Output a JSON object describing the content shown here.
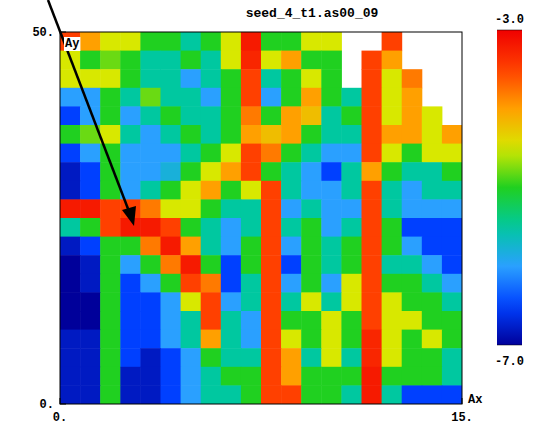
{
  "chart_data": {
    "type": "heatmap",
    "title": "seed_4_t1.as00_09",
    "x_label": "Ax",
    "y_label": "Ay",
    "x": [
      0.375,
      1.125,
      1.875,
      2.625,
      3.375,
      4.125,
      4.875,
      5.625,
      6.375,
      7.125,
      7.875,
      8.625,
      9.375,
      10.125,
      10.875,
      11.625,
      12.375,
      13.125,
      13.875,
      14.625
    ],
    "y": [
      48.75,
      46.25,
      43.75,
      41.25,
      38.75,
      36.25,
      33.75,
      31.25,
      28.75,
      26.25,
      23.75,
      21.25,
      18.75,
      16.25,
      13.75,
      11.25,
      8.75,
      6.25,
      3.75,
      1.25
    ],
    "cells": [
      [
        -3.5,
        -4,
        -4.5,
        -4.5,
        -5,
        -5,
        -5.5,
        -5,
        -4.5,
        -3.2,
        -5,
        -5,
        -4.5,
        -4.5,
        null,
        null,
        -3.5,
        null,
        null,
        null
      ],
      [
        -4.5,
        -5,
        -4.8,
        -5,
        -5.5,
        -5.5,
        -5,
        -5.5,
        -4.5,
        -3.3,
        -4.5,
        -4,
        -5,
        -5,
        null,
        -3.5,
        -4,
        null,
        null,
        null
      ],
      [
        -4.5,
        -4.5,
        -4.5,
        -5,
        -5.5,
        -5.5,
        -6,
        -5.5,
        -5,
        -3.5,
        -5.5,
        -5,
        -4.5,
        -5,
        null,
        -3.5,
        -4.5,
        -3.8,
        null,
        null
      ],
      [
        -6,
        -6,
        -5,
        -5.5,
        -4.8,
        -5.5,
        -5.5,
        -6,
        -5,
        -3.5,
        -6,
        -5,
        -4,
        -5,
        -5.5,
        -3.5,
        -4.5,
        -4,
        null,
        null
      ],
      [
        -6.5,
        -6,
        -5,
        -6,
        -5.5,
        -5,
        -5.5,
        -5.5,
        -5,
        -3.8,
        -5,
        -4,
        -4.2,
        -5.5,
        -5,
        -3.5,
        -4.5,
        -4,
        -4.5,
        null
      ],
      [
        -5,
        -4.8,
        -4.5,
        -5.5,
        -6,
        -5.5,
        -5,
        -5.5,
        -5,
        -4,
        -4.2,
        -4,
        -5,
        -5.5,
        -5.5,
        -3.5,
        -4,
        -4,
        -4.5,
        -4
      ],
      [
        -6.5,
        -6,
        -5,
        -6,
        -6,
        -6,
        -5.5,
        -5,
        -4.5,
        -3.5,
        -3.8,
        -5,
        -5.5,
        -6,
        -6,
        -3.5,
        -4.5,
        -5,
        -4.5,
        -4.5
      ],
      [
        -6.8,
        -6.5,
        -5,
        -6,
        -6,
        -5.8,
        -5,
        -4.5,
        -4,
        -3.5,
        -5,
        -5.5,
        -6,
        -6.5,
        -5.5,
        -4,
        -5,
        -5.5,
        -5.5,
        -5
      ],
      [
        -6.8,
        -6.5,
        -5,
        -6,
        -5.5,
        -5,
        -4.5,
        -4,
        -5,
        -4.5,
        -3.5,
        -5.5,
        -6,
        -6,
        -5.5,
        -3.5,
        -5.5,
        -6,
        -5.5,
        -5.5
      ],
      [
        -3.2,
        -3.2,
        -3.5,
        -3.5,
        -3.8,
        -4.5,
        -4.5,
        -5,
        -5.5,
        -5.5,
        -3.5,
        -6,
        -5.5,
        -6,
        -6,
        -3.5,
        -5.5,
        -6,
        -6,
        -6
      ],
      [
        -5.5,
        -5,
        -3.5,
        -3.2,
        -3.2,
        -3.5,
        -5,
        -5.5,
        -6,
        -5.5,
        -3.5,
        -5.5,
        -5,
        -6,
        -5.5,
        -3.5,
        -5,
        -6.5,
        -6.5,
        -6.5
      ],
      [
        -6.8,
        -6.5,
        -5,
        -5,
        -3.8,
        -3.2,
        -4,
        -5.5,
        -6,
        -5,
        -3.5,
        -6,
        -5,
        -5.5,
        -5,
        -3.5,
        -5,
        -6,
        -6.5,
        -6.5
      ],
      [
        -7,
        -6.8,
        -5,
        -6,
        -5,
        -3.8,
        -3.2,
        -5,
        -6.5,
        -5,
        -3.5,
        -6.5,
        -5,
        -5.5,
        -5,
        -3.5,
        -5.5,
        -5.5,
        -6,
        -6.5
      ],
      [
        -7,
        -6.8,
        -5,
        -6.5,
        -6,
        -5,
        -3.5,
        -3.8,
        -6.5,
        -5.5,
        -3.5,
        -6,
        -5,
        -6,
        -4.5,
        -3.5,
        -5,
        -5,
        -5.5,
        -6
      ],
      [
        -7,
        -7,
        -5,
        -6.5,
        -6.5,
        -6,
        -4.5,
        -3.5,
        -6,
        -5.5,
        -3.5,
        -5.5,
        -4.5,
        -5.5,
        -4.5,
        -3.5,
        -4.5,
        -5,
        -5,
        -5.5
      ],
      [
        -7,
        -7,
        -5,
        -6.5,
        -6.5,
        -6,
        -5.5,
        -3.5,
        -5.5,
        -6,
        -3.5,
        -5,
        -5,
        -4.5,
        -5,
        -3.5,
        -4.5,
        -4.5,
        -5,
        -5
      ],
      [
        -6.8,
        -6.8,
        -5,
        -6.5,
        -6.5,
        -6,
        -5.5,
        -4,
        -5.5,
        -6,
        -3.5,
        -4.5,
        -5,
        -4.5,
        -5,
        -3.3,
        -4.5,
        -5,
        -4.5,
        -5
      ],
      [
        -6.8,
        -6.8,
        -5,
        -6.5,
        -6.8,
        -6.5,
        -6,
        -5,
        -5.5,
        -5.5,
        -3.5,
        -4,
        -5.5,
        -4.5,
        -5.5,
        -3.3,
        -4.5,
        -5,
        -5,
        -5.5
      ],
      [
        -6.8,
        -6.8,
        -5,
        -6.8,
        -6.8,
        -6.5,
        -6,
        -5.5,
        -5,
        -5,
        -3.5,
        -4,
        -5,
        -5,
        -5,
        -3.2,
        -5,
        -5,
        -5,
        -5.5
      ],
      [
        -6.8,
        -6.8,
        -5,
        -6.8,
        -6.8,
        -6.5,
        -6,
        -5.5,
        -5.5,
        -5,
        -3.5,
        -3.5,
        -5,
        -5,
        -5.5,
        -3.2,
        -5.5,
        -6.5,
        -6.5,
        -6.5
      ]
    ],
    "xlim": [
      0,
      15
    ],
    "ylim": [
      0,
      50
    ],
    "xticks": [
      {
        "value": 0,
        "label": "0."
      },
      {
        "value": 15,
        "label": "15."
      }
    ],
    "yticks": [
      {
        "value": 0,
        "label": "0."
      },
      {
        "value": 50,
        "label": "50."
      }
    ],
    "colorbar": {
      "range": [
        -7,
        -3
      ],
      "ticks": [
        {
          "value": -3,
          "label": "-3.0"
        },
        {
          "value": -7,
          "label": "-7.0"
        }
      ]
    }
  }
}
